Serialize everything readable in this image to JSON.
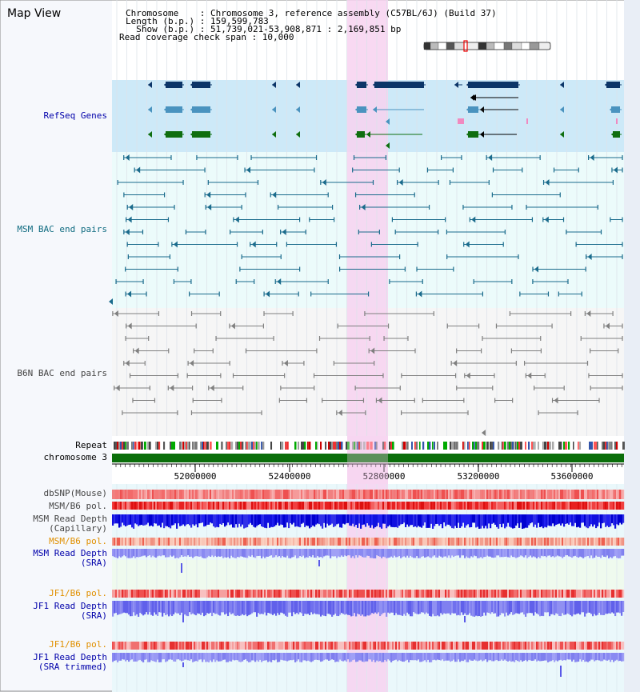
{
  "title": "Map View",
  "header": {
    "line1": "Chromosome    : Chromosome 3, reference assembly (C57BL/6J) (Build 37)",
    "line2": "Length (b.p.) : 159,599,783",
    "line3": "  Show (b.p.) : 51,739,021-53,908,871 : 2,169,851 bp",
    "line4": "Read coverage check span : 10,000"
  },
  "tracks": {
    "refseq": "RefSeq Genes",
    "msm_bac": "MSM BAC end pairs",
    "b6n_bac": "B6N BAC end pairs",
    "repeat": "Repeat",
    "chromosome": "chromosome 3",
    "dbsnp": "dbSNP(Mouse)",
    "msm_b6_pol": "MSM/B6 pol.",
    "msm_depth_cap_1": "MSM Read Depth",
    "msm_depth_cap_2": "(Capillary)",
    "msm_b6_pol2": "MSM/B6 pol.",
    "msm_depth_sra_1": "MSM Read Depth",
    "msm_depth_sra_2": "(SRA)",
    "jf1_pol1": "JF1/B6 pol.",
    "jf1_depth_sra_1": "JF1 Read Depth",
    "jf1_depth_sra_2": "(SRA)",
    "jf1_pol2": "JF1/B6 pol.",
    "jf1_trim_1": "JF1 Read Depth",
    "jf1_trim_2": "(SRA trimmed)"
  },
  "axis": {
    "ticks": [
      "52000000",
      "52400000",
      "52800000",
      "53200000",
      "53600000"
    ]
  },
  "colors": {
    "refseq_bg": "#cde9f8",
    "bac_bg": "#ecfbfb",
    "highlight": "#f7d2f0",
    "gene_dark": "#0c3568",
    "gene_mid": "#4a93bf",
    "gene_green": "#0f6e0f",
    "msm_pair": "#1a6b8c",
    "b6n_pair": "#808080",
    "chromosome_bar": "#0a6e0a",
    "label_blue": "#0000aa",
    "label_teal": "#0f6b80",
    "label_orange": "#e09000",
    "label_gray": "#444444",
    "depth_blue": "#1a1ae6",
    "depth_light": "#8888f0"
  }
}
